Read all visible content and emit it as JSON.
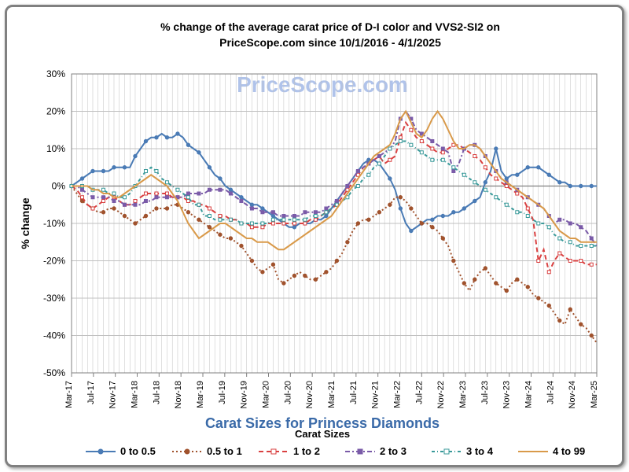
{
  "title_line1": "% change of the average carat price of  D-I color and VVS2-SI2  on",
  "title_line2": "PriceScope.com since 10/1/2016 - 4/1/2025",
  "watermark": "PriceScope.com",
  "y_axis_label": "% change",
  "x_axis_title": "Carat Sizes for Princess Diamonds",
  "legend_title": "Carat Sizes",
  "chart": {
    "type": "line",
    "background_color": "#ffffff",
    "grid_color": "#c0c0c0",
    "zero_line_color": "#808080",
    "ylim": [
      -50,
      30
    ],
    "ytick_step": 10,
    "yticks": [
      -50,
      -40,
      -30,
      -20,
      -10,
      0,
      10,
      20,
      30
    ],
    "ytick_labels": [
      "-50%",
      "-40%",
      "-30%",
      "-20%",
      "-10%",
      "0%",
      "10%",
      "20%",
      "30%"
    ],
    "x_categories": [
      "Mar-17",
      "Jul-17",
      "Nov-17",
      "Mar-18",
      "Jul-18",
      "Nov-18",
      "Mar-19",
      "Jul-19",
      "Nov-19",
      "Mar-20",
      "Jul-20",
      "Nov-20",
      "Mar-21",
      "Jul-21",
      "Nov-21",
      "Mar-22",
      "Jul-22",
      "Nov-22",
      "Mar-23",
      "Jul-23",
      "Nov-23",
      "Mar-24",
      "Jul-24",
      "Nov-24",
      "Mar-25"
    ],
    "n_points": 100,
    "series": [
      {
        "name": "0 to 0.5",
        "color": "#4a7bb5",
        "dash": "",
        "marker": "circle",
        "marker_fill": true,
        "line_width": 2,
        "values": [
          0,
          1,
          2,
          3,
          4,
          4,
          4,
          4,
          5,
          5,
          5,
          5,
          8,
          10,
          12,
          13,
          13,
          14,
          13,
          13,
          14,
          13,
          11,
          10,
          9,
          7,
          5,
          3,
          2,
          0,
          -1,
          -2,
          -3,
          -4,
          -5,
          -5,
          -6,
          -7,
          -8,
          -9,
          -10,
          -11,
          -11,
          -10,
          -10,
          -10,
          -9,
          -9,
          -8,
          -6,
          -4,
          -2,
          0,
          2,
          4,
          6,
          7,
          7,
          6,
          4,
          2,
          -1,
          -6,
          -10,
          -12,
          -11,
          -10,
          -9,
          -9,
          -8,
          -8,
          -8,
          -7,
          -7,
          -6,
          -5,
          -4,
          -3,
          1,
          4,
          10,
          4,
          2,
          3,
          3,
          4,
          5,
          5,
          5,
          4,
          3,
          2,
          1,
          1,
          0,
          0,
          0,
          0,
          0,
          0
        ]
      },
      {
        "name": "0.5 to 1",
        "color": "#a0522d",
        "dash": "2,3",
        "marker": "circle",
        "marker_fill": true,
        "line_width": 2,
        "values": [
          0,
          -2,
          -4,
          -5,
          -6,
          -7,
          -7,
          -6,
          -6,
          -7,
          -8,
          -9,
          -10,
          -9,
          -8,
          -7,
          -6,
          -6,
          -6,
          -5,
          -5,
          -6,
          -7,
          -8,
          -9,
          -10,
          -11,
          -12,
          -13,
          -14,
          -14,
          -15,
          -16,
          -18,
          -20,
          -22,
          -23,
          -22,
          -21,
          -25,
          -26,
          -25,
          -24,
          -23,
          -24,
          -25,
          -25,
          -24,
          -23,
          -22,
          -20,
          -18,
          -15,
          -12,
          -10,
          -9,
          -9,
          -8,
          -7,
          -6,
          -5,
          -3,
          -3,
          -4,
          -6,
          -8,
          -10,
          -10,
          -11,
          -12,
          -14,
          -16,
          -20,
          -23,
          -26,
          -28,
          -25,
          -23,
          -22,
          -24,
          -26,
          -27,
          -28,
          -26,
          -25,
          -26,
          -27,
          -29,
          -30,
          -31,
          -32,
          -34,
          -36,
          -37,
          -33,
          -35,
          -37,
          -38,
          -40,
          -42
        ]
      },
      {
        "name": "1 to 2",
        "color": "#d94040",
        "dash": "6,4",
        "marker": "square",
        "marker_fill": false,
        "line_width": 2,
        "values": [
          0,
          -1,
          -3,
          -5,
          -6,
          -5,
          -4,
          -3,
          -3,
          -4,
          -5,
          -5,
          -4,
          -3,
          -2,
          -2,
          -2,
          -2,
          -2,
          -3,
          -3,
          -3,
          -4,
          -4,
          -5,
          -5,
          -6,
          -7,
          -8,
          -8,
          -9,
          -9,
          -10,
          -10,
          -11,
          -11,
          -11,
          -10,
          -10,
          -10,
          -10,
          -10,
          -10,
          -10,
          -10,
          -9,
          -9,
          -8,
          -7,
          -6,
          -5,
          -3,
          -1,
          1,
          3,
          5,
          6,
          7,
          8,
          6,
          7,
          8,
          13,
          17,
          15,
          13,
          12,
          11,
          10,
          9,
          9,
          10,
          11,
          11,
          10,
          9,
          8,
          7,
          5,
          3,
          2,
          1,
          0,
          -1,
          -2,
          -3,
          -6,
          -9,
          -20,
          -17,
          -23,
          -20,
          -18,
          -19,
          -20,
          -20,
          -20,
          -21,
          -21,
          -21
        ]
      },
      {
        "name": "2 to 3",
        "color": "#7a5ba8",
        "dash": "6,3,2,3",
        "marker": "square",
        "marker_fill": true,
        "line_width": 2,
        "values": [
          0,
          0,
          -1,
          -2,
          -3,
          -3,
          -3,
          -3,
          -4,
          -4,
          -5,
          -5,
          -5,
          -5,
          -4,
          -4,
          -3,
          -3,
          -3,
          -3,
          -3,
          -3,
          -2,
          -2,
          -2,
          -2,
          -1,
          -1,
          -1,
          -1,
          -2,
          -3,
          -4,
          -5,
          -6,
          -6,
          -7,
          -7,
          -7,
          -8,
          -8,
          -8,
          -8,
          -8,
          -7,
          -7,
          -7,
          -7,
          -6,
          -5,
          -4,
          -2,
          0,
          2,
          4,
          5,
          6,
          7,
          8,
          9,
          10,
          12,
          18,
          20,
          18,
          15,
          14,
          13,
          12,
          11,
          10,
          9,
          4,
          6,
          10,
          11,
          11,
          10,
          8,
          6,
          4,
          2,
          1,
          0,
          -1,
          -2,
          -3,
          -4,
          -5,
          -6,
          -8,
          -10,
          -9,
          -9,
          -10,
          -10,
          -11,
          -12,
          -14,
          -16
        ]
      },
      {
        "name": "3 to 4",
        "color": "#3a9a9a",
        "dash": "4,3,1,3",
        "marker": "square",
        "marker_fill": false,
        "line_width": 2,
        "values": [
          0,
          0,
          0,
          0,
          -1,
          -1,
          -1,
          -2,
          -2,
          -3,
          -3,
          -2,
          0,
          2,
          4,
          5,
          4,
          2,
          1,
          0,
          -1,
          -2,
          -3,
          -5,
          -5,
          -8,
          -8,
          -9,
          -9,
          -9,
          -9,
          -9,
          -10,
          -10,
          -10,
          -10,
          -10,
          -10,
          -9,
          -9,
          -9,
          -9,
          -9,
          -9,
          -9,
          -8,
          -8,
          -8,
          -7,
          -6,
          -5,
          -4,
          -3,
          -1,
          0,
          2,
          3,
          5,
          6,
          8,
          10,
          11,
          12,
          12,
          11,
          10,
          9,
          8,
          7,
          7,
          7,
          6,
          5,
          4,
          3,
          2,
          1,
          0,
          -1,
          -2,
          -3,
          -4,
          -5,
          -6,
          -7,
          -7,
          -8,
          -9,
          -10,
          -10,
          -11,
          -13,
          -14,
          -15,
          -15,
          -16,
          -16,
          -16,
          -16,
          -16
        ]
      },
      {
        "name": "4 to 99",
        "color": "#d99a4a",
        "dash": "",
        "marker": "none",
        "marker_fill": false,
        "line_width": 2,
        "values": [
          0,
          0,
          0,
          0,
          -1,
          -1,
          -2,
          -2,
          -3,
          -3,
          -2,
          -1,
          0,
          1,
          2,
          3,
          2,
          1,
          0,
          -2,
          -4,
          -7,
          -10,
          -12,
          -14,
          -13,
          -12,
          -11,
          -10,
          -10,
          -11,
          -12,
          -13,
          -14,
          -14,
          -15,
          -15,
          -15,
          -16,
          -17,
          -17,
          -16,
          -15,
          -14,
          -13,
          -12,
          -11,
          -10,
          -9,
          -8,
          -6,
          -4,
          -2,
          0,
          2,
          4,
          6,
          8,
          9,
          10,
          11,
          14,
          18,
          20,
          17,
          14,
          13,
          15,
          18,
          20,
          18,
          15,
          12,
          10,
          10,
          11,
          11,
          10,
          8,
          6,
          4,
          2,
          1,
          0,
          -1,
          -2,
          -3,
          -4,
          -5,
          -6,
          -8,
          -10,
          -12,
          -13,
          -14,
          -14,
          -15,
          -15,
          -15,
          -15
        ]
      }
    ]
  }
}
